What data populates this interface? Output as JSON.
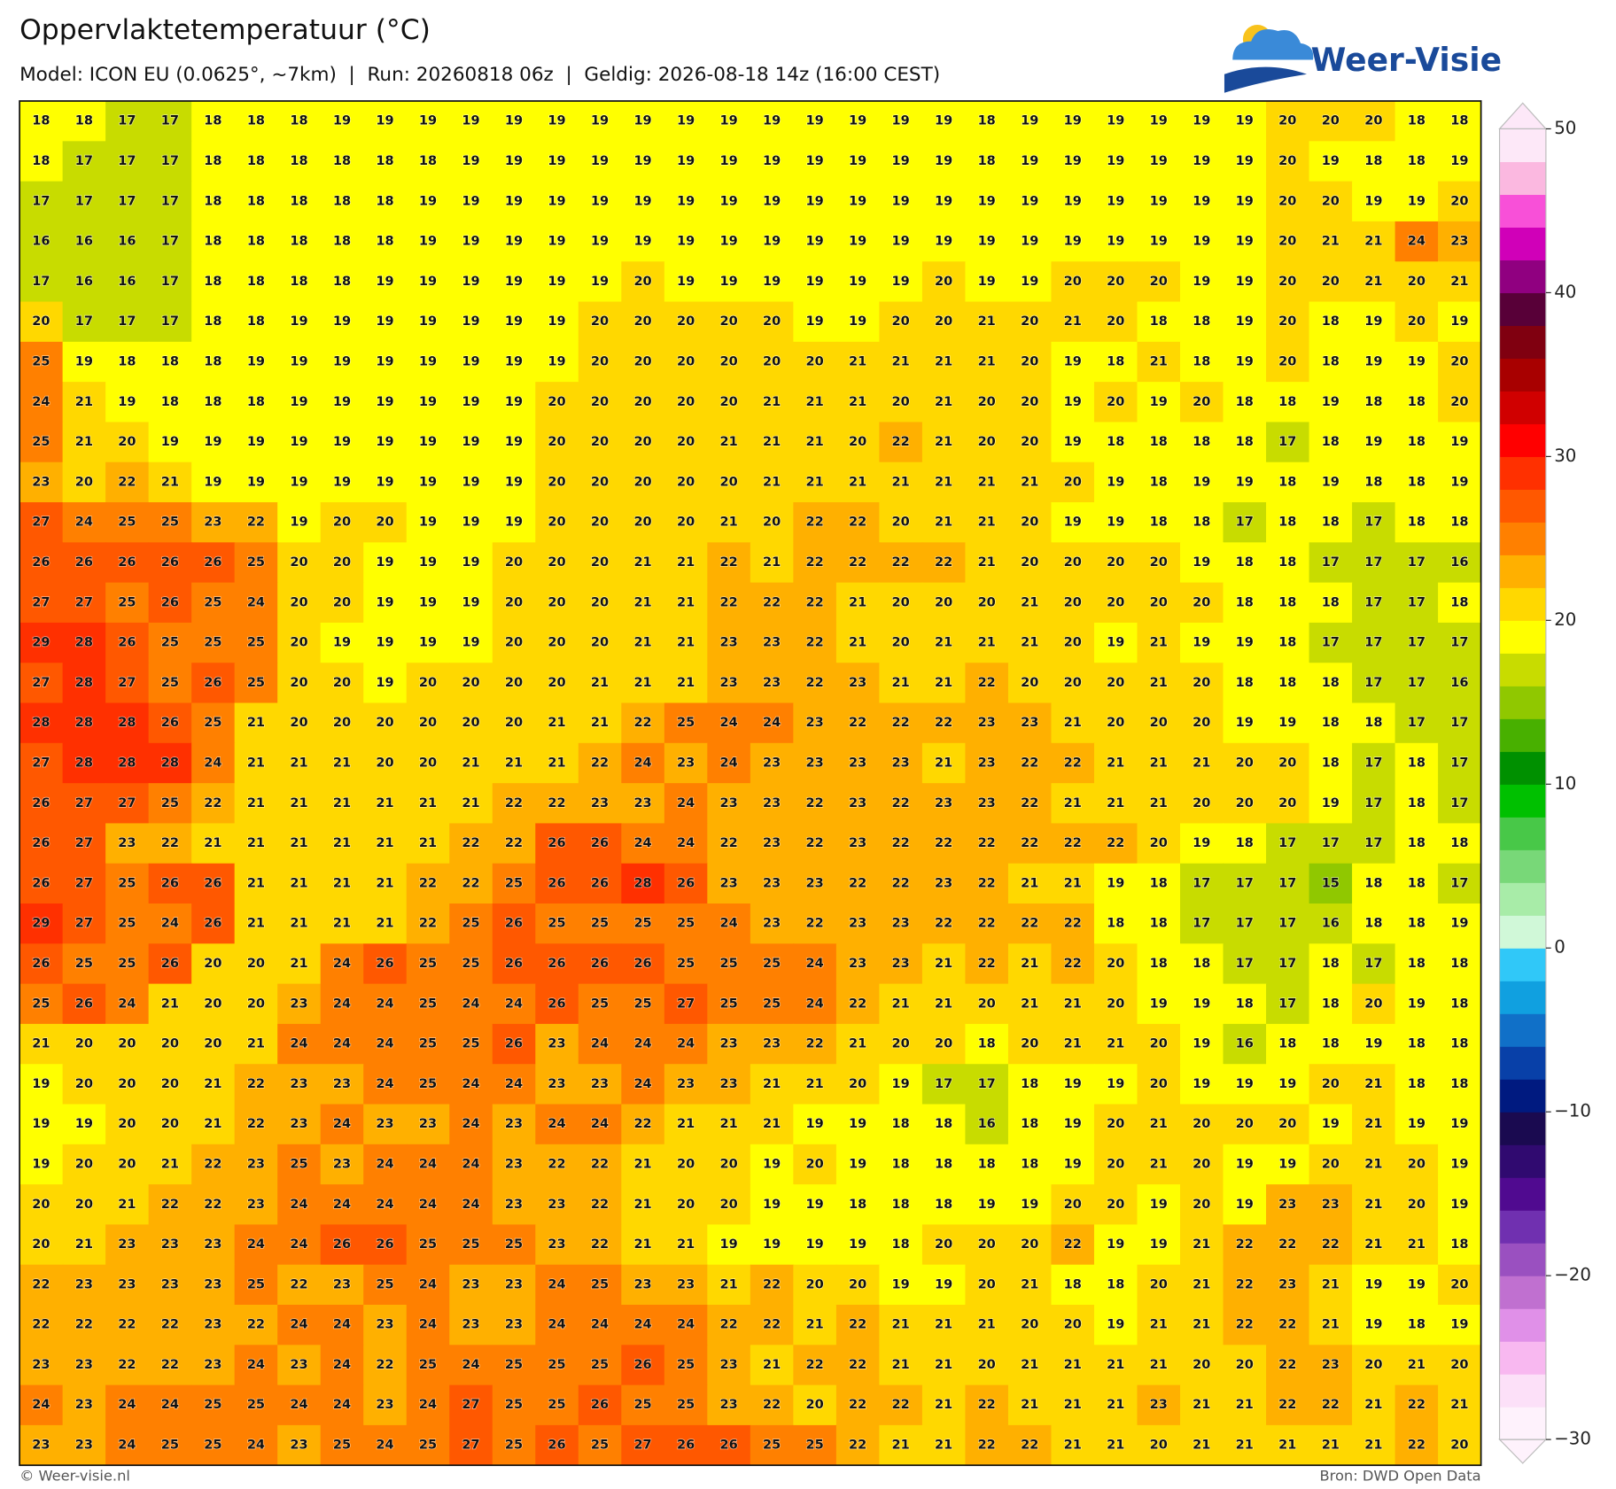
{
  "header": {
    "title": "Oppervlaktetemperatuur (°C)",
    "subtitle": "Model: ICON EU (0.0625°, ~7km)  |  Run: 20260818 06z  |  Geldig: 2026-08-18 14z (16:00 CEST)",
    "logo": "Weer-Visie"
  },
  "map": {
    "grid": [
      [
        18,
        18,
        17,
        17,
        18,
        18,
        18,
        19,
        19,
        19,
        19,
        19,
        19,
        19,
        19,
        19,
        19,
        19,
        19,
        19,
        19,
        19,
        18,
        19,
        19,
        19,
        19,
        19,
        19,
        20,
        20,
        20,
        18,
        18
      ],
      [
        18,
        17,
        17,
        17,
        18,
        18,
        18,
        18,
        18,
        18,
        19,
        19,
        19,
        19,
        19,
        19,
        19,
        19,
        19,
        19,
        19,
        19,
        18,
        19,
        19,
        19,
        19,
        19,
        19,
        20,
        19,
        18,
        18,
        19
      ],
      [
        17,
        17,
        17,
        17,
        18,
        18,
        18,
        18,
        18,
        19,
        19,
        19,
        19,
        19,
        19,
        19,
        19,
        19,
        19,
        19,
        19,
        19,
        19,
        19,
        19,
        19,
        19,
        19,
        19,
        20,
        20,
        19,
        19,
        20
      ],
      [
        16,
        16,
        16,
        17,
        18,
        18,
        18,
        18,
        18,
        19,
        19,
        19,
        19,
        19,
        19,
        19,
        19,
        19,
        19,
        19,
        19,
        19,
        19,
        19,
        19,
        19,
        19,
        19,
        19,
        20,
        21,
        21,
        24,
        23
      ],
      [
        17,
        16,
        16,
        17,
        18,
        18,
        18,
        18,
        19,
        19,
        19,
        19,
        19,
        19,
        20,
        19,
        19,
        19,
        19,
        19,
        19,
        20,
        19,
        19,
        20,
        20,
        20,
        19,
        19,
        20,
        20,
        21,
        20,
        21
      ],
      [
        20,
        17,
        17,
        17,
        18,
        18,
        19,
        19,
        19,
        19,
        19,
        19,
        19,
        20,
        20,
        20,
        20,
        20,
        19,
        19,
        20,
        20,
        21,
        20,
        21,
        20,
        18,
        18,
        19,
        20,
        18,
        19,
        20,
        19
      ],
      [
        25,
        19,
        18,
        18,
        18,
        19,
        19,
        19,
        19,
        19,
        19,
        19,
        19,
        20,
        20,
        20,
        20,
        20,
        20,
        21,
        21,
        21,
        21,
        20,
        19,
        18,
        21,
        18,
        19,
        20,
        18,
        19,
        19,
        20
      ],
      [
        24,
        21,
        19,
        18,
        18,
        18,
        19,
        19,
        19,
        19,
        19,
        19,
        20,
        20,
        20,
        20,
        20,
        21,
        21,
        21,
        20,
        21,
        20,
        20,
        19,
        20,
        19,
        20,
        18,
        18,
        19,
        18,
        18,
        20
      ],
      [
        25,
        21,
        20,
        19,
        19,
        19,
        19,
        19,
        19,
        19,
        19,
        19,
        20,
        20,
        20,
        20,
        21,
        21,
        21,
        20,
        22,
        21,
        20,
        20,
        19,
        18,
        18,
        18,
        18,
        17,
        18,
        19,
        18,
        19
      ],
      [
        23,
        20,
        22,
        21,
        19,
        19,
        19,
        19,
        19,
        19,
        19,
        19,
        20,
        20,
        20,
        20,
        20,
        21,
        21,
        21,
        21,
        21,
        21,
        21,
        20,
        19,
        18,
        19,
        19,
        18,
        19,
        18,
        18,
        19
      ],
      [
        27,
        24,
        25,
        25,
        23,
        22,
        19,
        20,
        20,
        19,
        19,
        19,
        20,
        20,
        20,
        20,
        21,
        20,
        22,
        22,
        20,
        21,
        21,
        20,
        19,
        19,
        18,
        18,
        17,
        18,
        18,
        17,
        18,
        18
      ],
      [
        26,
        26,
        26,
        26,
        26,
        25,
        20,
        20,
        19,
        19,
        19,
        20,
        20,
        20,
        21,
        21,
        22,
        21,
        22,
        22,
        22,
        22,
        21,
        20,
        20,
        20,
        20,
        19,
        18,
        18,
        17,
        17,
        17,
        16
      ],
      [
        27,
        27,
        25,
        26,
        25,
        24,
        20,
        20,
        19,
        19,
        19,
        20,
        20,
        20,
        21,
        21,
        22,
        22,
        22,
        21,
        20,
        20,
        20,
        21,
        20,
        20,
        20,
        20,
        18,
        18,
        18,
        17,
        17,
        18
      ],
      [
        29,
        28,
        26,
        25,
        25,
        25,
        20,
        19,
        19,
        19,
        19,
        20,
        20,
        20,
        21,
        21,
        23,
        23,
        22,
        21,
        20,
        21,
        21,
        21,
        20,
        19,
        21,
        19,
        19,
        18,
        17,
        17,
        17,
        17
      ],
      [
        27,
        28,
        27,
        25,
        26,
        25,
        20,
        20,
        19,
        20,
        20,
        20,
        20,
        21,
        21,
        21,
        23,
        23,
        22,
        23,
        21,
        21,
        22,
        20,
        20,
        20,
        21,
        20,
        18,
        18,
        18,
        17,
        17,
        16
      ],
      [
        28,
        28,
        28,
        26,
        25,
        21,
        20,
        20,
        20,
        20,
        20,
        20,
        21,
        21,
        22,
        25,
        24,
        24,
        23,
        22,
        22,
        22,
        23,
        23,
        21,
        20,
        20,
        20,
        19,
        19,
        18,
        18,
        17,
        17
      ],
      [
        27,
        28,
        28,
        28,
        24,
        21,
        21,
        21,
        20,
        20,
        21,
        21,
        21,
        22,
        24,
        23,
        24,
        23,
        23,
        23,
        23,
        21,
        23,
        22,
        22,
        21,
        21,
        21,
        20,
        20,
        18,
        17,
        18,
        17
      ],
      [
        26,
        27,
        27,
        25,
        22,
        21,
        21,
        21,
        21,
        21,
        21,
        22,
        22,
        23,
        23,
        24,
        23,
        23,
        22,
        23,
        22,
        23,
        23,
        22,
        21,
        21,
        21,
        20,
        20,
        20,
        19,
        17,
        18,
        17
      ],
      [
        26,
        27,
        23,
        22,
        21,
        21,
        21,
        21,
        21,
        21,
        22,
        22,
        26,
        26,
        24,
        24,
        22,
        23,
        22,
        23,
        22,
        22,
        22,
        22,
        22,
        22,
        20,
        19,
        18,
        17,
        17,
        17,
        18,
        18
      ],
      [
        26,
        27,
        25,
        26,
        26,
        21,
        21,
        21,
        21,
        22,
        22,
        25,
        26,
        26,
        28,
        26,
        23,
        23,
        23,
        22,
        22,
        23,
        22,
        21,
        21,
        19,
        18,
        17,
        17,
        17,
        15,
        18,
        18,
        17
      ],
      [
        29,
        27,
        25,
        24,
        26,
        21,
        21,
        21,
        21,
        22,
        25,
        26,
        25,
        25,
        25,
        25,
        24,
        23,
        22,
        23,
        23,
        22,
        22,
        22,
        22,
        18,
        18,
        17,
        17,
        17,
        16,
        18,
        18,
        19
      ],
      [
        26,
        25,
        25,
        26,
        20,
        20,
        21,
        24,
        26,
        25,
        25,
        26,
        26,
        26,
        26,
        25,
        25,
        25,
        24,
        23,
        23,
        21,
        22,
        21,
        22,
        20,
        18,
        18,
        17,
        17,
        18,
        17,
        18,
        18
      ],
      [
        25,
        26,
        24,
        21,
        20,
        20,
        23,
        24,
        24,
        25,
        24,
        24,
        26,
        25,
        25,
        27,
        25,
        25,
        24,
        22,
        21,
        21,
        20,
        21,
        21,
        20,
        19,
        19,
        18,
        17,
        18,
        20,
        19,
        18
      ],
      [
        21,
        20,
        20,
        20,
        20,
        21,
        24,
        24,
        24,
        25,
        25,
        26,
        23,
        24,
        24,
        24,
        23,
        23,
        22,
        21,
        20,
        20,
        18,
        20,
        21,
        21,
        20,
        19,
        16,
        18,
        18,
        19,
        18,
        18
      ],
      [
        19,
        20,
        20,
        20,
        21,
        22,
        23,
        23,
        24,
        25,
        24,
        24,
        23,
        23,
        24,
        23,
        23,
        21,
        21,
        20,
        19,
        17,
        17,
        18,
        19,
        19,
        20,
        19,
        19,
        19,
        20,
        21,
        18,
        18
      ],
      [
        19,
        19,
        20,
        20,
        21,
        22,
        23,
        24,
        23,
        23,
        24,
        23,
        24,
        24,
        22,
        21,
        21,
        21,
        19,
        19,
        18,
        18,
        16,
        18,
        19,
        20,
        21,
        20,
        20,
        20,
        19,
        21,
        19,
        19
      ],
      [
        19,
        20,
        20,
        21,
        22,
        23,
        25,
        23,
        24,
        24,
        24,
        23,
        22,
        22,
        21,
        20,
        20,
        19,
        20,
        19,
        18,
        18,
        18,
        18,
        19,
        20,
        21,
        20,
        19,
        19,
        20,
        21,
        20,
        19
      ],
      [
        20,
        20,
        21,
        22,
        22,
        23,
        24,
        24,
        24,
        24,
        24,
        23,
        23,
        22,
        21,
        20,
        20,
        19,
        19,
        18,
        18,
        18,
        19,
        19,
        20,
        20,
        19,
        20,
        19,
        23,
        23,
        21,
        20,
        19
      ],
      [
        20,
        21,
        23,
        23,
        23,
        24,
        24,
        26,
        26,
        25,
        25,
        25,
        23,
        22,
        21,
        21,
        19,
        19,
        19,
        19,
        18,
        20,
        20,
        20,
        22,
        19,
        19,
        21,
        22,
        22,
        22,
        21,
        21,
        18
      ],
      [
        22,
        23,
        23,
        23,
        23,
        25,
        22,
        23,
        25,
        24,
        23,
        23,
        24,
        25,
        23,
        23,
        21,
        22,
        20,
        20,
        19,
        19,
        20,
        21,
        18,
        18,
        20,
        21,
        22,
        23,
        21,
        19,
        19,
        20
      ],
      [
        22,
        22,
        22,
        22,
        23,
        22,
        24,
        24,
        23,
        24,
        23,
        23,
        24,
        24,
        24,
        24,
        22,
        22,
        21,
        22,
        21,
        21,
        21,
        20,
        20,
        19,
        21,
        21,
        22,
        22,
        21,
        19,
        18,
        19
      ],
      [
        23,
        23,
        22,
        22,
        23,
        24,
        23,
        24,
        22,
        25,
        24,
        25,
        25,
        25,
        26,
        25,
        23,
        21,
        22,
        22,
        21,
        21,
        20,
        21,
        21,
        21,
        21,
        20,
        20,
        22,
        23,
        20,
        21,
        20
      ],
      [
        24,
        23,
        24,
        24,
        25,
        25,
        24,
        24,
        23,
        24,
        27,
        25,
        25,
        26,
        25,
        25,
        23,
        22,
        20,
        22,
        22,
        21,
        22,
        21,
        21,
        21,
        23,
        21,
        21,
        22,
        22,
        21,
        22,
        21
      ],
      [
        23,
        23,
        24,
        25,
        25,
        24,
        23,
        25,
        24,
        25,
        27,
        25,
        26,
        25,
        27,
        26,
        26,
        25,
        25,
        22,
        21,
        21,
        22,
        22,
        21,
        21,
        20,
        21,
        21,
        21,
        21,
        21,
        22,
        20
      ]
    ]
  },
  "colorbar": {
    "lim": [
      -30,
      50
    ],
    "ticks": [
      50,
      40,
      30,
      20,
      10,
      0,
      {
        "value": -10,
        "label": "−10"
      },
      {
        "value": -20,
        "label": "−20"
      },
      {
        "value": -30,
        "label": "−30"
      }
    ],
    "colors": [
      "#fef2fc",
      "#fce0f8",
      "#f8b8f0",
      "#e090e8",
      "#c070d0",
      "#9a50c0",
      "#7030b0",
      "#500a90",
      "#300a70",
      "#1a0a50",
      "#001a80",
      "#0840a8",
      "#1070c8",
      "#10a0e0",
      "#30c8f8",
      "#d0f8d8",
      "#a8eca8",
      "#78d878",
      "#48c848",
      "#00c000",
      "#009000",
      "#48b000",
      "#90c800",
      "#c8dc00",
      "#ffff00",
      "#ffd800",
      "#ffb000",
      "#ff8000",
      "#ff5800",
      "#ff3000",
      "#ff0000",
      "#d00000",
      "#a80000",
      "#800010",
      "#580038",
      "#900080",
      "#d000b8",
      "#f850d8",
      "#fbb8e0",
      "#fde8f8"
    ]
  },
  "footer": {
    "credit": "© Weer-visie.nl",
    "source": "Bron: DWD Open Data"
  }
}
